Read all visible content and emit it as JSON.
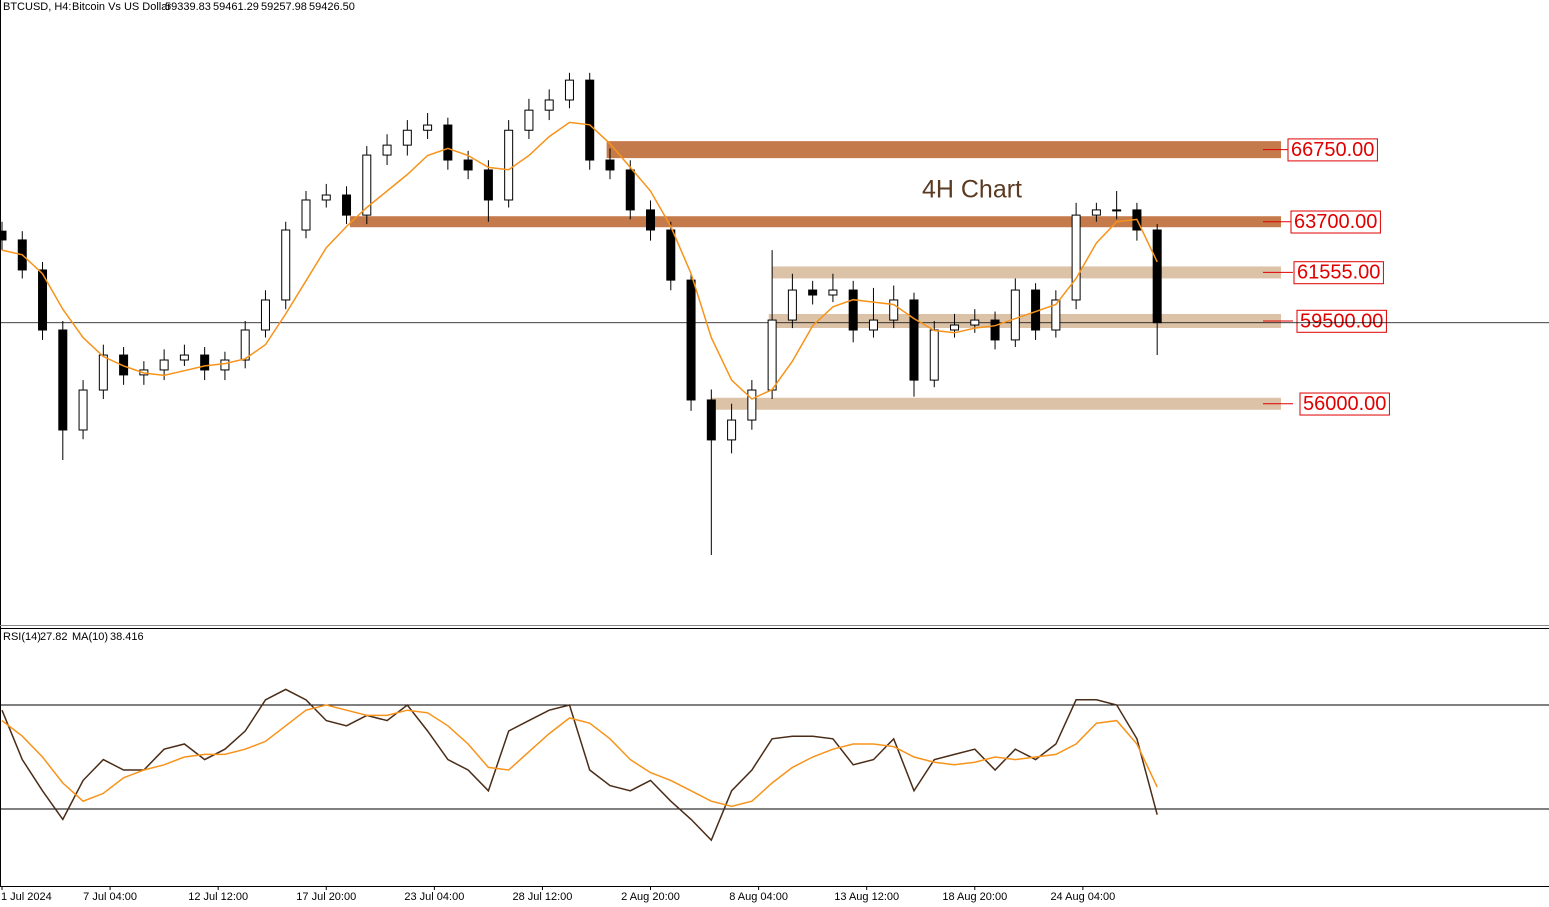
{
  "chart_data": {
    "type": "candlestick",
    "header": {
      "symbol": "BTCUSD, H4:",
      "description": "Bitcoin Vs US Dollar",
      "ohlc": [
        {
          "value": 59339.83,
          "label": "59339.83"
        },
        {
          "value": 59461.29,
          "label": "59461.29"
        },
        {
          "value": 59257.98,
          "label": "59257.98"
        },
        {
          "value": 59426.5,
          "label": "59426.50"
        }
      ]
    },
    "annotation": "4H Chart",
    "xlim": [
      0,
      458
    ],
    "ylim": [
      46640,
      73080
    ],
    "xticks": [
      {
        "value": 0,
        "label": "1 Jul 2024"
      },
      {
        "value": 32,
        "label": "7 Jul 04:00"
      },
      {
        "value": 64,
        "label": "12 Jul 12:00"
      },
      {
        "value": 96,
        "label": "17 Jul 20:00"
      },
      {
        "value": 128,
        "label": "23 Jul 04:00"
      },
      {
        "value": 160,
        "label": "28 Jul 12:00"
      },
      {
        "value": 192,
        "label": "2 Aug 20:00"
      },
      {
        "value": 224,
        "label": "8 Aug 04:00"
      },
      {
        "value": 256,
        "label": "13 Aug 12:00"
      },
      {
        "value": 288,
        "label": "18 Aug 20:00"
      },
      {
        "value": 320,
        "label": "24 Aug 04:00"
      }
    ],
    "up_color": "#ffffff",
    "down_color": "#000000",
    "x": [
      0,
      6,
      12,
      18,
      24,
      30,
      36,
      42,
      48,
      54,
      60,
      66,
      72,
      78,
      84,
      90,
      96,
      102,
      108,
      114,
      120,
      126,
      132,
      138,
      144,
      150,
      156,
      162,
      168,
      174,
      180,
      186,
      192,
      198,
      204,
      210,
      216,
      222,
      228,
      234,
      240,
      246,
      252,
      258,
      264,
      270,
      276,
      282,
      288,
      294,
      300,
      306,
      312,
      318,
      324,
      330,
      336,
      342
    ],
    "open": [
      63300,
      62930,
      61660,
      59120,
      54890,
      56580,
      58060,
      57220,
      57430,
      57850,
      58060,
      57430,
      57850,
      59120,
      60390,
      63350,
      64620,
      64830,
      63980,
      66520,
      66940,
      67570,
      67790,
      66310,
      65890,
      64620,
      67570,
      68420,
      68850,
      69690,
      66310,
      65890,
      64200,
      63350,
      61230,
      56160,
      54470,
      55310,
      56580,
      59540,
      60810,
      60600,
      60810,
      59120,
      59540,
      60390,
      57000,
      59120,
      59330,
      59540,
      58700,
      60810,
      59120,
      60390,
      63980,
      64200,
      64200,
      63350
    ],
    "high": [
      63700,
      63300,
      62000,
      59500,
      57000,
      58500,
      58400,
      57800,
      58300,
      58500,
      58400,
      58200,
      59500,
      60800,
      63700,
      65000,
      65300,
      65200,
      66900,
      67400,
      68000,
      68300,
      68100,
      66700,
      66300,
      68000,
      68900,
      69300,
      70000,
      70000,
      66800,
      66300,
      64600,
      63700,
      61500,
      56600,
      56000,
      57000,
      62500,
      61500,
      61200,
      61500,
      61200,
      60900,
      61000,
      60700,
      59500,
      59800,
      60000,
      59900,
      61300,
      61100,
      60800,
      64500,
      64500,
      65000,
      64500,
      63600
    ],
    "low": [
      62500,
      61300,
      58700,
      53620,
      54500,
      56200,
      56800,
      56800,
      57000,
      57600,
      57000,
      57000,
      57500,
      58800,
      60000,
      63000,
      64300,
      63600,
      63600,
      66100,
      66500,
      67200,
      65900,
      65500,
      63700,
      64300,
      67200,
      68000,
      68500,
      65900,
      65500,
      63800,
      62900,
      60800,
      55700,
      49600,
      53900,
      54900,
      56200,
      59200,
      60200,
      60300,
      58600,
      58800,
      59200,
      56300,
      56700,
      58800,
      59000,
      58300,
      58400,
      58700,
      58800,
      60000,
      63700,
      63800,
      62900,
      58060
    ],
    "close": [
      62930,
      61660,
      59120,
      54890,
      56580,
      58060,
      57220,
      57430,
      57850,
      58060,
      57430,
      57850,
      59120,
      60390,
      63350,
      64620,
      64830,
      63980,
      66520,
      66940,
      67570,
      67790,
      66310,
      65890,
      64620,
      67570,
      68420,
      68850,
      69690,
      66310,
      65890,
      64200,
      63350,
      61230,
      56160,
      54470,
      55310,
      56580,
      59540,
      60810,
      60600,
      60810,
      59120,
      59540,
      60390,
      57000,
      59120,
      59330,
      59540,
      58700,
      60810,
      59120,
      60390,
      63980,
      64200,
      64200,
      63350,
      59430
    ],
    "ma": {
      "color": "#f7931a",
      "values": [
        62500,
        62300,
        61500,
        60000,
        58800,
        58000,
        57600,
        57300,
        57200,
        57400,
        57600,
        57700,
        57900,
        58500,
        59800,
        61200,
        62600,
        63500,
        64300,
        65000,
        65700,
        66500,
        66800,
        66500,
        66000,
        65900,
        66500,
        67300,
        67900,
        67800,
        67000,
        66000,
        65000,
        63500,
        61500,
        58800,
        57000,
        56200,
        56600,
        57800,
        59300,
        60100,
        60400,
        60300,
        60200,
        59600,
        59100,
        59000,
        59200,
        59300,
        59600,
        59900,
        60200,
        61300,
        62800,
        63700,
        63800,
        62000
      ]
    },
    "zones": [
      {
        "value": 66750,
        "label": "66750.00",
        "start": 179,
        "color": "#c47a4b"
      },
      {
        "value": 63700,
        "label": "63700.00",
        "start": 103,
        "color": "#c47a4b"
      },
      {
        "value": 61555,
        "label": "61555.00",
        "start": 228,
        "color": "#dcc3a8"
      },
      {
        "value": 59500,
        "label": "59500.00",
        "start": 227,
        "color": "#dcc3a8"
      },
      {
        "value": 56000,
        "label": "56000.00",
        "start": 210,
        "color": "#dcc3a8"
      }
    ],
    "rsi": {
      "title": "RSI(14)",
      "ma_title": "MA(10)",
      "ylim": [
        0,
        100
      ],
      "levels": [
        70,
        30
      ],
      "color": "#4a2c17",
      "ma_color": "#f7931a",
      "values": [
        68,
        49,
        37,
        26,
        41,
        49,
        45,
        45,
        53,
        55,
        49,
        53,
        60,
        72,
        76,
        72,
        64,
        62,
        66,
        64,
        70,
        60,
        49,
        45,
        37,
        60,
        64,
        68,
        70,
        45,
        39,
        37,
        41,
        33,
        26,
        18,
        37,
        45,
        57,
        58,
        58,
        57,
        47,
        49,
        57,
        37,
        49,
        51,
        53,
        45,
        53,
        49,
        55,
        72,
        72,
        70,
        57,
        27.82
      ],
      "ma": [
        64,
        58,
        50,
        40,
        33,
        36,
        42,
        45,
        47,
        50,
        51,
        51,
        53,
        56,
        62,
        68,
        70,
        68,
        66,
        66,
        68,
        67,
        62,
        55,
        46,
        45,
        52,
        59,
        65,
        63,
        57,
        49,
        44,
        41,
        37,
        33,
        31,
        33,
        40,
        46,
        50,
        53,
        55,
        55,
        54,
        50,
        48,
        47,
        48,
        50,
        49,
        50,
        51,
        55,
        63,
        64,
        55,
        38.416
      ]
    }
  }
}
